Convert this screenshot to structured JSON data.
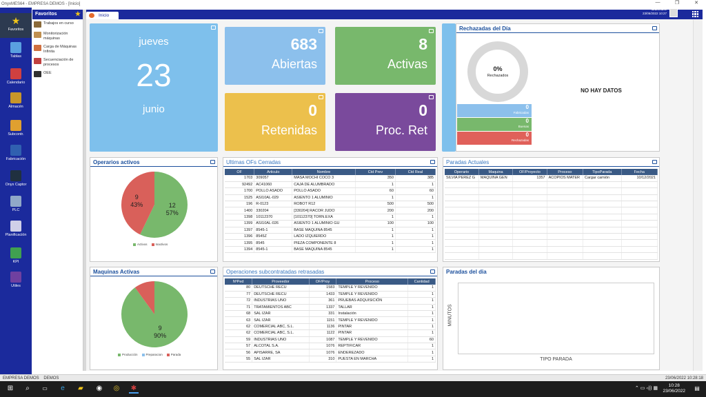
{
  "window": {
    "title": "OnyxMES64 - EMPRESA DEMOS - [Inicio]",
    "min": "—",
    "max": "❐",
    "close": "✕"
  },
  "nav": {
    "items": [
      {
        "label": "Favoritos",
        "icon": "star-icon",
        "color": "#f0c419"
      },
      {
        "label": "Tablas",
        "icon": "table-icon",
        "color": "#5aa0e0"
      },
      {
        "label": "Calendario",
        "icon": "calendar-icon",
        "color": "#d04040"
      },
      {
        "label": "Almacén",
        "icon": "warehouse-icon",
        "color": "#c8962a"
      },
      {
        "label": "Subcontr.",
        "icon": "subcontract-icon",
        "color": "#e0a030"
      },
      {
        "label": "Fabricación",
        "icon": "factory-icon",
        "color": "#3060b0"
      },
      {
        "label": "Onyx Captor",
        "icon": "monitor-icon",
        "color": "#203040"
      },
      {
        "label": "PLC",
        "icon": "plc-icon",
        "color": "#90a8c8"
      },
      {
        "label": "Planificación",
        "icon": "planning-icon",
        "color": "#d0d0e8"
      },
      {
        "label": "KPI",
        "icon": "kpi-icon",
        "color": "#40a050"
      },
      {
        "label": "Utiles",
        "icon": "tools-icon",
        "color": "#7040a0"
      }
    ]
  },
  "favorites": {
    "title": "Favoritos",
    "items": [
      {
        "label": "Trabajos en curso",
        "color": "#8a6a3a"
      },
      {
        "label": "Monitorización máquinas",
        "color": "#c09050"
      },
      {
        "label": "Carga de Máquinas Infinita",
        "color": "#d07040"
      },
      {
        "label": "Secuenciación de procesos",
        "color": "#c04040"
      },
      {
        "label": "OEE",
        "color": "#303030"
      }
    ]
  },
  "tabs": [
    {
      "label": "Inicio"
    }
  ],
  "user": {
    "name": "DEMOS",
    "datetime": "23/06/2022 10:27"
  },
  "date_tile": {
    "weekday": "jueves",
    "day": "23",
    "month": "junio"
  },
  "tiles": [
    {
      "value": "683",
      "label": "Abiertas",
      "color": "#8cc0ec"
    },
    {
      "value": "8",
      "label": "Activas",
      "color": "#78b86c"
    },
    {
      "value": "0",
      "label": "Retenidas",
      "color": "#ecc04c"
    },
    {
      "value": "0",
      "label": "Proc. Ret",
      "color": "#7a4a9c"
    }
  ],
  "rejected": {
    "title": "Rechazadas del Día",
    "percent": "0%",
    "percent_label": "Rechazados",
    "no_data": "NO HAY DATOS",
    "bars": [
      {
        "value": "0",
        "label": "Fabricadas",
        "color": "#8cc0ec"
      },
      {
        "value": "0",
        "label": "Buenas",
        "color": "#78b86c"
      },
      {
        "value": "0",
        "label": "Rechazadas",
        "color": "#e0605a"
      }
    ]
  },
  "operators": {
    "title": "Operarios activos",
    "chart_data": {
      "type": "pie",
      "title": "Operarios activos",
      "categories": [
        "Activos",
        "Inactivos"
      ],
      "values": [
        12,
        9
      ],
      "percents": [
        "57%",
        "43%"
      ],
      "colors": [
        "#78b86c",
        "#d9605a"
      ]
    }
  },
  "machines": {
    "title": "Maquinas Activas",
    "chart_data": {
      "type": "pie",
      "title": "Maquinas Activas",
      "categories": [
        "Producción",
        "Preparacion",
        "Parada"
      ],
      "values": [
        9,
        0,
        1
      ],
      "percents": [
        "90%",
        "",
        ""
      ],
      "colors": [
        "#78b86c",
        "#8cc0ec",
        "#d9605a"
      ]
    }
  },
  "closed_ofs": {
    "title": "Ultimas OFs Cerradas",
    "columns": [
      "OF",
      "Articulo",
      "Nombre",
      "Ctd Prev",
      "Ctd Real"
    ],
    "rows": [
      [
        "1703",
        "309057",
        "MASA MOCHI COCO 3",
        "350",
        "385"
      ],
      [
        "92492",
        "AC41060",
        "CAJA DE ALUMBRADO",
        "1",
        "1"
      ],
      [
        "1700",
        "POLLO ASADO",
        "POLLO ASADO",
        "60",
        "60"
      ],
      [
        "1525",
        "ASI10AL-029",
        "ASIENTO 1 ALUMINIO",
        "1",
        "1"
      ],
      [
        "196",
        "R-0123",
        "ROBOT R12",
        "500",
        "500"
      ],
      [
        "1400",
        "330204",
        "[330204] RACOR JUDO",
        "200",
        "200"
      ],
      [
        "1398",
        "10112370",
        "[10112370] TORN.EXA",
        "1",
        "1"
      ],
      [
        "1399",
        "ASI10AL-026",
        "ASIENTO 1 ALUMINIO GU",
        "100",
        "100"
      ],
      [
        "1397",
        "8545-1",
        "BASE MAQUINA 8545",
        "1",
        "1"
      ],
      [
        "1396",
        "8545Z",
        "LADO IZQUIERDO",
        "1",
        "1"
      ],
      [
        "1395",
        "8545",
        "PIEZA COMPONENTE 8",
        "1",
        "1"
      ],
      [
        "1394",
        "8545-1",
        "BASE MAQUINA 8545",
        "1",
        "1"
      ]
    ]
  },
  "current_stops": {
    "title": "Paradas Actuales",
    "columns": [
      "Operario",
      "Maquina",
      "OF/Proyecto",
      "Proceso",
      "TipoParada",
      "Fecha"
    ],
    "rows": [
      [
        "SILVIA PEREZ G",
        "MAQUINA GEN",
        "1357",
        "ACOPIOS MATER",
        "Cargar camión",
        "10/12/2021"
      ]
    ]
  },
  "subcontracted": {
    "title": "Operaciones subcontratadas retrasadas",
    "columns": [
      "NºPed",
      "Proveedor",
      "OF/Proy",
      "Proceso",
      "Cantidad"
    ],
    "rows": [
      [
        "80",
        "DEUTSCHE RECU",
        "1583",
        "TEMPLE Y REVENIDO",
        "1"
      ],
      [
        "77",
        "DEUTSCHE RECU",
        "1433",
        "TEMPLE Y REVENIDO",
        "1"
      ],
      [
        "72",
        "INDUSTRIAS UNO",
        "361",
        "PRUEBAS ADQUISICIÓN",
        "1"
      ],
      [
        "71",
        "TRATAMIENTOS ABC",
        "1337",
        "TALLAR",
        "1"
      ],
      [
        "68",
        "SAL IZAR",
        "331",
        "Instalación",
        "1"
      ],
      [
        "63",
        "SAL IZAR",
        "1151",
        "TEMPLE Y REVENIDO",
        "1"
      ],
      [
        "62",
        "COMERCIAL ABC, S.L.",
        "1136",
        "PINTAR",
        "1"
      ],
      [
        "62",
        "COMERCIAL ABC, S.L.",
        "1122",
        "PINTAR",
        "1"
      ],
      [
        "59",
        "INDUSTRIAS UNO",
        "1087",
        "TEMPLE Y REVENIDO",
        "60"
      ],
      [
        "57",
        "ALCOTAL S.A.",
        "1076",
        "REPTIFICAR",
        "1"
      ],
      [
        "56",
        "APISARRE, SA",
        "1076",
        "ENDEREZADO",
        "1"
      ],
      [
        "55",
        "SAL IZAR",
        "310",
        "PUESTA EN MARCHA",
        "1"
      ]
    ]
  },
  "day_stops": {
    "title": "Paradas del dia",
    "ylabel": "MINUTOS",
    "xlabel": "TIPO PARADA"
  },
  "status": {
    "company": "EMPRESA DEMOS",
    "user": "DEMOS",
    "datetime": "23/06/2022 10:28:18"
  },
  "taskbar": {
    "time": "10:28",
    "date": "23/06/2022"
  }
}
